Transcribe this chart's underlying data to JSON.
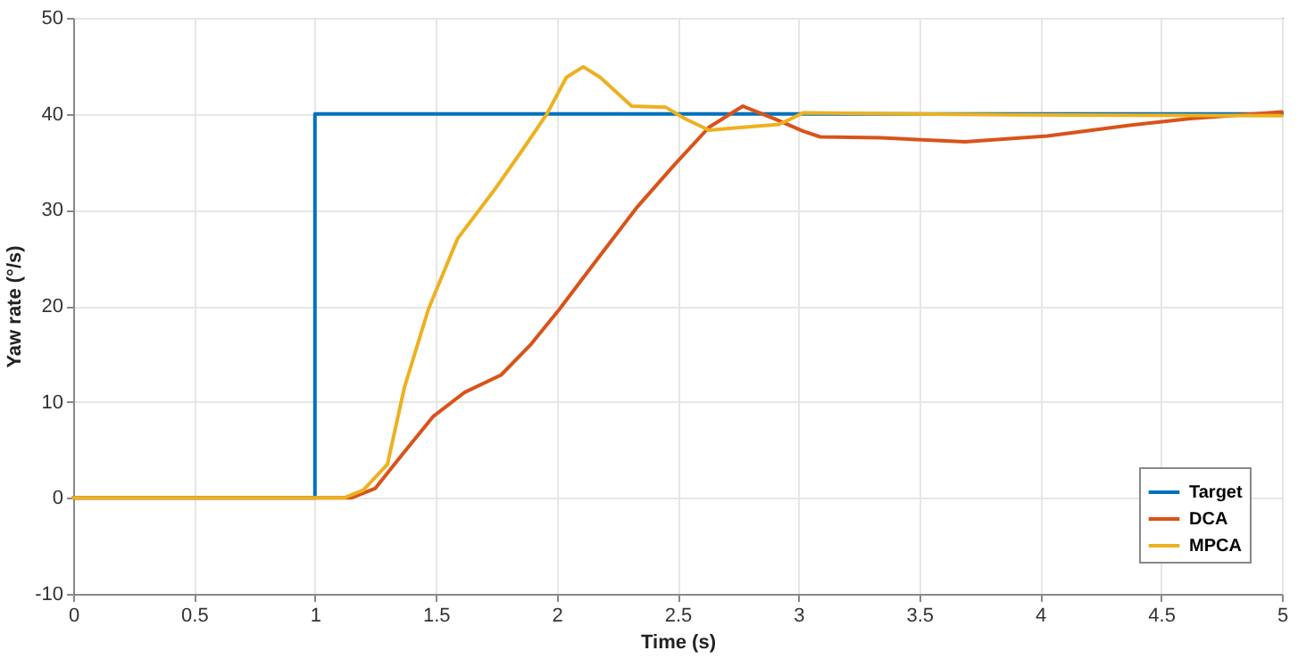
{
  "chart_data": {
    "type": "line",
    "xlabel": "Time (s)",
    "ylabel": "Yaw rate (°/s)",
    "xlim": [
      0,
      5
    ],
    "xticks": [
      0,
      0.5,
      1,
      1.5,
      2,
      2.5,
      3,
      3.5,
      4,
      4.5,
      5
    ],
    "ylim": [
      -10,
      50
    ],
    "yticks": [
      -10,
      0,
      10,
      20,
      30,
      40,
      50
    ],
    "grid": true,
    "legend": "bottom right",
    "line_style": "solid",
    "marker": "none",
    "series": [
      {
        "name": "Target",
        "color": "#0072bd",
        "x": [
          0,
          1,
          1,
          5
        ],
        "values": [
          0,
          0,
          40,
          40
        ]
      },
      {
        "name": "DCA",
        "color": "#d95319",
        "x": [
          0,
          1.15,
          1.25,
          1.37,
          1.49,
          1.62,
          1.77,
          1.89,
          2.01,
          2.16,
          2.33,
          2.48,
          2.63,
          2.77,
          2.9,
          3.02,
          3.09,
          3.34,
          3.69,
          4.03,
          4.37,
          4.62,
          5
        ],
        "values": [
          0,
          0,
          1,
          4.8,
          8.5,
          11,
          12.8,
          15.9,
          19.6,
          24.6,
          30.2,
          34.5,
          38.6,
          40.8,
          39.5,
          38.2,
          37.6,
          37.5,
          37.1,
          37.7,
          38.8,
          39.5,
          40.2
        ]
      },
      {
        "name": "MPCA",
        "color": "#edb120",
        "x": [
          0,
          1.12,
          1.2,
          1.3,
          1.37,
          1.47,
          1.59,
          1.74,
          1.86,
          1.96,
          2.04,
          2.11,
          2.18,
          2.31,
          2.45,
          2.53,
          2.63,
          2.77,
          2.92,
          3.02,
          3.88,
          5
        ],
        "values": [
          0,
          0,
          0.8,
          3.5,
          11.5,
          19.7,
          27,
          32,
          36.3,
          40,
          43.8,
          44.9,
          43.8,
          40.8,
          40.7,
          39.5,
          38.3,
          38.6,
          38.9,
          40.1,
          39.9,
          39.8
        ]
      }
    ]
  }
}
